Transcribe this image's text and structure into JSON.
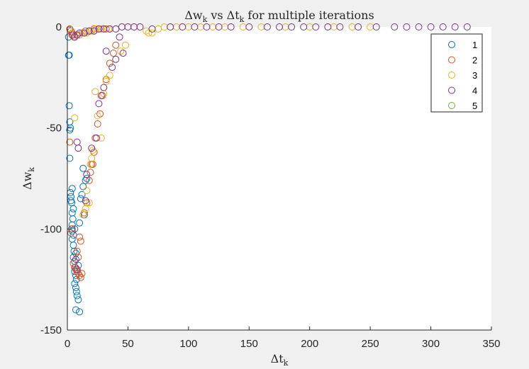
{
  "chart_data": {
    "type": "scatter",
    "title": "Δw_k vs Δt_k for multiple iterations",
    "title_parts": {
      "a": "Δw",
      "a_sub": "k",
      "mid": " vs Δt",
      "mid_sub": "k",
      "end": " for multiple iterations"
    },
    "xlabel": "Δt_k",
    "xlabel_parts": {
      "main": "Δt",
      "sub": "k"
    },
    "ylabel": "Δw_k",
    "ylabel_parts": {
      "main": "Δw",
      "sub": "k"
    },
    "xlim": [
      0,
      350
    ],
    "ylim": [
      -150,
      0
    ],
    "xticks": [
      0,
      50,
      100,
      150,
      200,
      250,
      300,
      350
    ],
    "yticks": [
      -150,
      -100,
      -50,
      0
    ],
    "grid": false,
    "legend_position": "top-right",
    "marker": "open-circle",
    "series": [
      {
        "name": "1",
        "color": "#0072BD",
        "points": [
          [
            1,
            -5
          ],
          [
            1,
            -14
          ],
          [
            1.5,
            -14
          ],
          [
            1.5,
            -39
          ],
          [
            2,
            -47
          ],
          [
            2,
            -51
          ],
          [
            2.5,
            -50
          ],
          [
            2,
            -65
          ],
          [
            2.5,
            -82
          ],
          [
            3,
            -84
          ],
          [
            3,
            -86
          ],
          [
            3.5,
            -87
          ],
          [
            4,
            -80
          ],
          [
            4,
            -92
          ],
          [
            4.5,
            -95
          ],
          [
            4,
            -98
          ],
          [
            3.5,
            -100
          ],
          [
            4,
            -101
          ],
          [
            5,
            -103
          ],
          [
            4,
            -105
          ],
          [
            5,
            -108
          ],
          [
            5.5,
            -111
          ],
          [
            5,
            -114
          ],
          [
            6,
            -116
          ],
          [
            6.5,
            -119
          ],
          [
            6,
            -121
          ],
          [
            7,
            -123
          ],
          [
            7.5,
            -125
          ],
          [
            6,
            -127
          ],
          [
            7,
            -129
          ],
          [
            7.5,
            -131
          ],
          [
            8,
            -133
          ],
          [
            9,
            -135
          ],
          [
            7,
            -140
          ],
          [
            10,
            -141
          ],
          [
            6,
            -100
          ],
          [
            5,
            -90
          ],
          [
            7,
            -112
          ],
          [
            9,
            -118
          ],
          [
            10,
            -97
          ],
          [
            11,
            -85
          ],
          [
            12,
            -83
          ],
          [
            13,
            -79
          ],
          [
            14,
            -93
          ],
          [
            15,
            -76
          ],
          [
            16,
            -75
          ],
          [
            13,
            -70
          ]
        ]
      },
      {
        "name": "2",
        "color": "#D95319",
        "points": [
          [
            2,
            -1
          ],
          [
            3,
            -2
          ],
          [
            4,
            -3
          ],
          [
            5,
            -4
          ],
          [
            6,
            -5
          ],
          [
            2,
            -57
          ],
          [
            4,
            -100
          ],
          [
            3,
            -102
          ],
          [
            5,
            -117
          ],
          [
            6,
            -119
          ],
          [
            7,
            -120
          ],
          [
            8,
            -121
          ],
          [
            9,
            -122
          ],
          [
            10,
            -123
          ],
          [
            11,
            -124
          ],
          [
            12,
            -122
          ],
          [
            10,
            -104
          ],
          [
            11,
            -106
          ],
          [
            8,
            -111
          ],
          [
            9,
            -114
          ],
          [
            14,
            -92
          ],
          [
            16,
            -87
          ],
          [
            18,
            -76
          ],
          [
            19,
            -72
          ],
          [
            20,
            -68
          ],
          [
            21,
            -68
          ],
          [
            22,
            -62
          ],
          [
            23,
            -55
          ],
          [
            25,
            -48
          ],
          [
            27,
            -43
          ],
          [
            29,
            -34
          ],
          [
            32,
            -26
          ],
          [
            35,
            -18
          ],
          [
            38,
            -13
          ],
          [
            40,
            -9
          ],
          [
            10,
            -4
          ],
          [
            12,
            -3
          ],
          [
            15,
            -2
          ],
          [
            18,
            -2
          ],
          [
            22,
            -1
          ],
          [
            28,
            -1
          ],
          [
            32,
            -1
          ]
        ]
      },
      {
        "name": "3",
        "color": "#EDB120",
        "points": [
          [
            5,
            -5
          ],
          [
            8,
            -4
          ],
          [
            10,
            -4
          ],
          [
            12,
            -3
          ],
          [
            14,
            -3
          ],
          [
            16,
            -3
          ],
          [
            18,
            -2
          ],
          [
            20,
            -2
          ],
          [
            22,
            -2
          ],
          [
            24,
            -1
          ],
          [
            26,
            -1
          ],
          [
            28,
            -1
          ],
          [
            30,
            -1
          ],
          [
            34,
            -1
          ],
          [
            40,
            -1
          ],
          [
            45,
            0
          ],
          [
            50,
            0
          ],
          [
            55,
            0
          ],
          [
            60,
            0
          ],
          [
            65,
            -2
          ],
          [
            67,
            -3
          ],
          [
            70,
            -3
          ],
          [
            75,
            -1
          ],
          [
            80,
            0
          ],
          [
            85,
            0
          ],
          [
            90,
            0
          ],
          [
            95,
            0
          ],
          [
            100,
            0
          ],
          [
            110,
            0
          ],
          [
            120,
            0
          ],
          [
            130,
            0
          ],
          [
            145,
            0
          ],
          [
            160,
            0
          ],
          [
            180,
            0
          ],
          [
            200,
            0
          ],
          [
            215,
            0
          ],
          [
            220,
            0
          ],
          [
            235,
            0
          ],
          [
            250,
            0
          ],
          [
            23,
            -32
          ],
          [
            25,
            -44
          ],
          [
            28,
            -55
          ],
          [
            30,
            -33
          ],
          [
            16,
            -81
          ],
          [
            18,
            -87
          ],
          [
            19,
            -68
          ],
          [
            20,
            -65
          ],
          [
            21,
            -61
          ],
          [
            13,
            -93
          ],
          [
            15,
            -90
          ],
          [
            48,
            -9
          ],
          [
            44,
            -12
          ],
          [
            32,
            -27
          ],
          [
            35,
            -24
          ],
          [
            6,
            -45
          ]
        ]
      },
      {
        "name": "4",
        "color": "#7E2F8E",
        "points": [
          [
            4,
            -4
          ],
          [
            6,
            -5
          ],
          [
            8,
            -4
          ],
          [
            10,
            -3
          ],
          [
            14,
            -3
          ],
          [
            18,
            -2
          ],
          [
            22,
            -2
          ],
          [
            26,
            -1
          ],
          [
            30,
            -1
          ],
          [
            35,
            -1
          ],
          [
            40,
            -1
          ],
          [
            45,
            0
          ],
          [
            50,
            0
          ],
          [
            55,
            0
          ],
          [
            60,
            0
          ],
          [
            70,
            -1
          ],
          [
            85,
            0
          ],
          [
            95,
            0
          ],
          [
            105,
            0
          ],
          [
            115,
            0
          ],
          [
            125,
            0
          ],
          [
            135,
            0
          ],
          [
            150,
            0
          ],
          [
            165,
            0
          ],
          [
            175,
            0
          ],
          [
            185,
            0
          ],
          [
            195,
            0
          ],
          [
            205,
            0
          ],
          [
            215,
            0
          ],
          [
            225,
            0
          ],
          [
            240,
            0
          ],
          [
            255,
            0
          ],
          [
            270,
            0
          ],
          [
            280,
            0
          ],
          [
            290,
            0
          ],
          [
            300,
            0
          ],
          [
            310,
            0
          ],
          [
            320,
            0
          ],
          [
            330,
            0
          ],
          [
            32,
            -12
          ],
          [
            37,
            -20
          ],
          [
            43,
            -5
          ],
          [
            46,
            -13
          ],
          [
            40,
            -16
          ],
          [
            30,
            -30
          ],
          [
            28,
            -34
          ],
          [
            26,
            -38
          ],
          [
            24,
            -55
          ],
          [
            20,
            -60
          ],
          [
            16,
            -73
          ],
          [
            8,
            -57
          ],
          [
            9,
            -60
          ],
          [
            15,
            -86
          ],
          [
            7,
            -115
          ],
          [
            8,
            -120
          ]
        ]
      },
      {
        "name": "5",
        "color": "#77AC30",
        "points": []
      }
    ]
  }
}
